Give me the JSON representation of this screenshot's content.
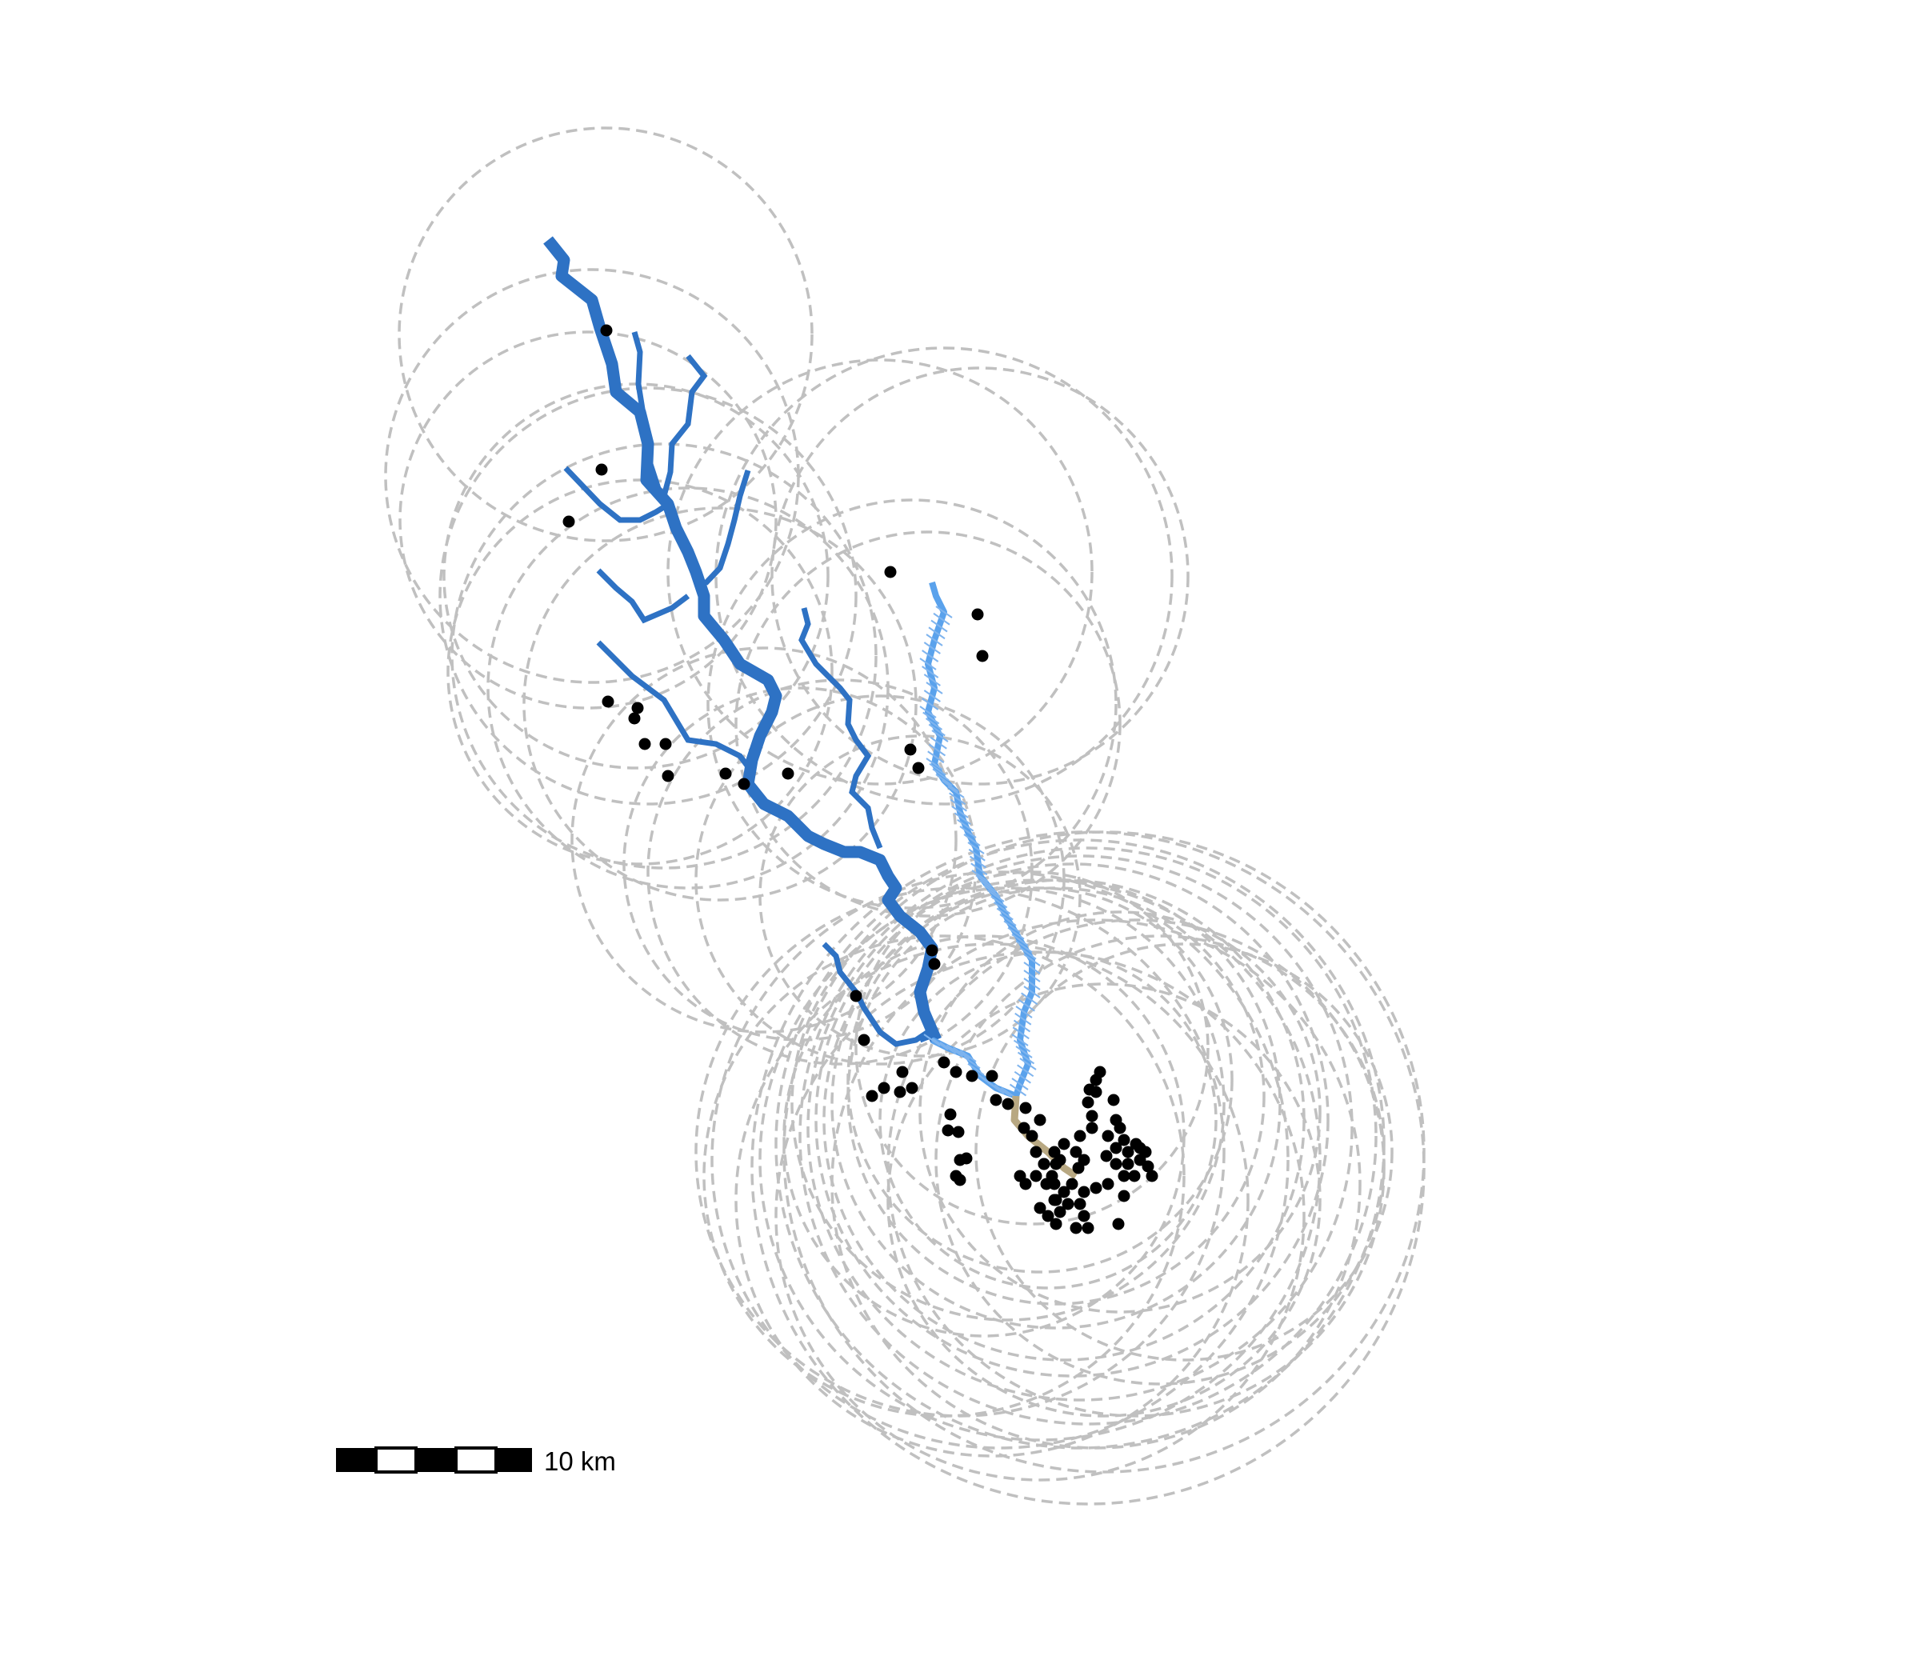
{
  "map": {
    "scale_bar": {
      "label": "10 km"
    },
    "colors": {
      "buffer_circle": "#c0c0c0",
      "main_river": "#2e72c4",
      "tributary": "#2e72c4",
      "light_river": "#5aa2ec",
      "light_river_hatch": "#7fb4ee",
      "tan_segment": "#b8a882",
      "site_point": "#000000"
    },
    "layers": [
      "buffer-circles",
      "main-river",
      "tributaries",
      "light-river",
      "tan-segment",
      "site-points"
    ]
  }
}
